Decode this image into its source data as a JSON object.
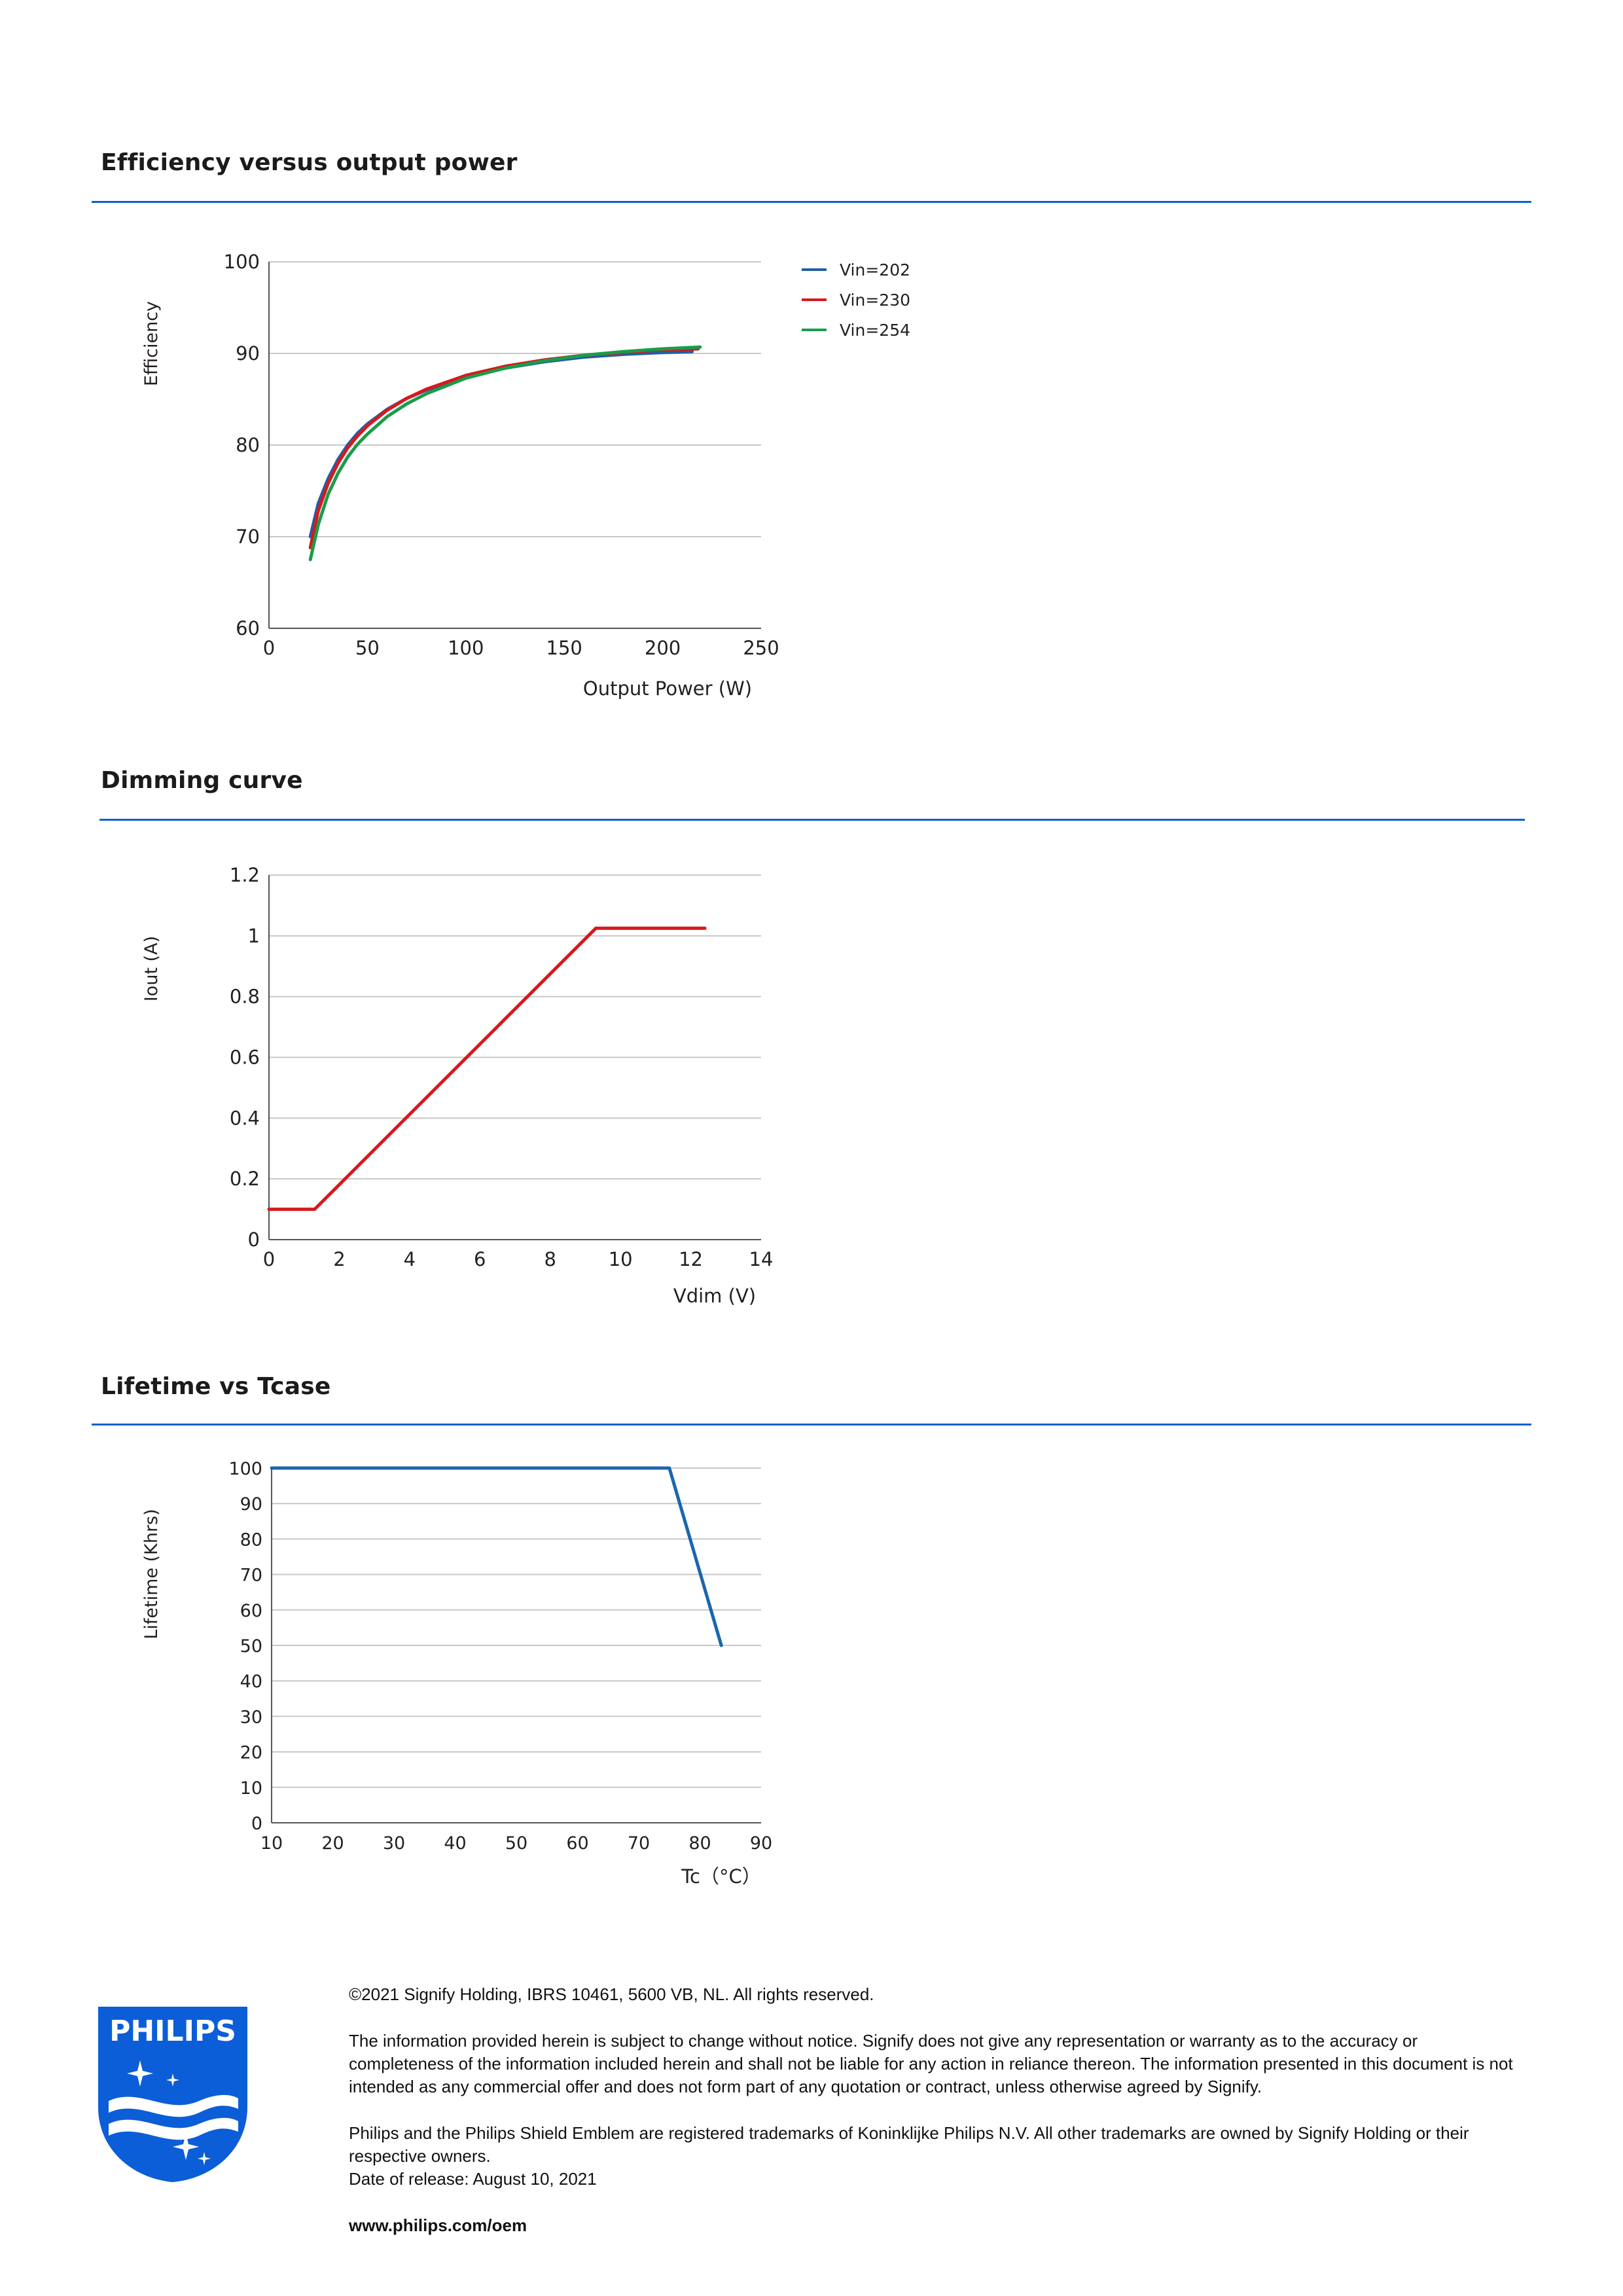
{
  "sections": {
    "efficiency_title": "Efficiency versus output power",
    "dimming_title": "Dimming curve",
    "lifetime_title": "Lifetime vs Tcase"
  },
  "colors": {
    "rule": "#0b5ed7",
    "vin202": "#1f5fa6",
    "vin230": "#d7191c",
    "vin254": "#1a9c4a",
    "dimming": "#d7191c",
    "lifetime": "#1a66b0",
    "logo_blue": "#0b5ed7"
  },
  "chart_data": [
    {
      "id": "efficiency",
      "type": "line",
      "title": "Efficiency versus output power",
      "xlabel": "Output Power (W)",
      "ylabel": "Efficiency",
      "xlim": [
        0,
        250
      ],
      "ylim": [
        60,
        100
      ],
      "xticks": [
        "0",
        "50",
        "100",
        "150",
        "200",
        "250"
      ],
      "yticks": [
        "60",
        "70",
        "80",
        "90",
        "100"
      ],
      "xtick_values": [
        0,
        50,
        100,
        150,
        200,
        250
      ],
      "ytick_values": [
        60,
        70,
        80,
        90,
        100
      ],
      "grid": "horizontal",
      "legend": "right",
      "series": [
        {
          "name": "Vin=202",
          "color": "#1f5fa6",
          "x": [
            21,
            25,
            30,
            35,
            40,
            45,
            50,
            60,
            70,
            80,
            100,
            120,
            140,
            160,
            180,
            200,
            215
          ],
          "y": [
            70.0,
            73.6,
            76.3,
            78.4,
            80.0,
            81.3,
            82.3,
            83.9,
            85.1,
            86.0,
            87.4,
            88.4,
            89.1,
            89.6,
            89.9,
            90.1,
            90.2
          ]
        },
        {
          "name": "Vin=230",
          "color": "#d7191c",
          "x": [
            21,
            25,
            30,
            35,
            40,
            45,
            50,
            60,
            70,
            80,
            100,
            120,
            140,
            160,
            180,
            200,
            218
          ],
          "y": [
            68.8,
            72.8,
            75.8,
            78.0,
            79.7,
            81.0,
            82.1,
            83.8,
            85.1,
            86.1,
            87.6,
            88.6,
            89.3,
            89.8,
            90.1,
            90.4,
            90.5
          ]
        },
        {
          "name": "Vin=254",
          "color": "#1a9c4a",
          "x": [
            21,
            25,
            30,
            35,
            40,
            45,
            50,
            60,
            70,
            80,
            100,
            120,
            140,
            160,
            180,
            200,
            219
          ],
          "y": [
            67.5,
            71.3,
            74.6,
            76.9,
            78.7,
            80.1,
            81.2,
            83.1,
            84.5,
            85.6,
            87.3,
            88.4,
            89.2,
            89.8,
            90.2,
            90.5,
            90.7
          ]
        }
      ]
    },
    {
      "id": "dimming",
      "type": "line",
      "title": "Dimming curve",
      "xlabel": "Vdim (V)",
      "ylabel": "Iout (A)",
      "xlim": [
        0,
        14
      ],
      "ylim": [
        0,
        1.2
      ],
      "xticks": [
        "0",
        "2",
        "4",
        "6",
        "8",
        "10",
        "12",
        "14"
      ],
      "yticks": [
        "0",
        "0.2",
        "0.4",
        "0.6",
        "0.8",
        "1",
        "1.2"
      ],
      "xtick_values": [
        0,
        2,
        4,
        6,
        8,
        10,
        12,
        14
      ],
      "ytick_values": [
        0,
        0.2,
        0.4,
        0.6,
        0.8,
        1.0,
        1.2
      ],
      "grid": "horizontal",
      "series": [
        {
          "color": "#d7191c",
          "x": [
            0,
            1.3,
            9.3,
            12.4
          ],
          "y": [
            0.1,
            0.1,
            1.025,
            1.025
          ]
        }
      ]
    },
    {
      "id": "lifetime",
      "type": "line",
      "title": "Lifetime vs Tcase",
      "xlabel": "Tc（°C）",
      "ylabel": "Lifetime (Khrs)",
      "xlim": [
        10,
        90
      ],
      "ylim": [
        0,
        100
      ],
      "xticks": [
        "10",
        "20",
        "30",
        "40",
        "50",
        "60",
        "70",
        "80",
        "90"
      ],
      "yticks": [
        "0",
        "10",
        "20",
        "30",
        "40",
        "50",
        "60",
        "70",
        "80",
        "90",
        "100"
      ],
      "xtick_values": [
        10,
        20,
        30,
        40,
        50,
        60,
        70,
        80,
        90
      ],
      "ytick_values": [
        0,
        10,
        20,
        30,
        40,
        50,
        60,
        70,
        80,
        90,
        100
      ],
      "grid": "horizontal",
      "series": [
        {
          "color": "#1a66b0",
          "x": [
            10,
            75,
            83.5
          ],
          "y": [
            100,
            100,
            50
          ]
        }
      ]
    }
  ],
  "footer": {
    "copyright": "©2021 Signify Holding, IBRS 10461, 5600 VB, NL. All rights reserved.",
    "disclaimer": "The information provided herein is subject to change without notice. Signify does not give any representation or warranty as to the accuracy or completeness of the information included herein and shall not be liable for any action in reliance thereon. The information presented in this document is not intended as any commercial offer and does not form part of any quotation or contract, unless otherwise agreed by Signify.",
    "trademarks": "Philips and the Philips Shield Emblem are registered trademarks of Koninklijke Philips N.V. All other trademarks are owned by Signify Holding or their respective owners.",
    "release_date": "Date of release: August 10, 2021",
    "url": "www.philips.com/oem"
  },
  "logo": {
    "text": "PHILIPS",
    "icon": "philips-shield-icon"
  }
}
